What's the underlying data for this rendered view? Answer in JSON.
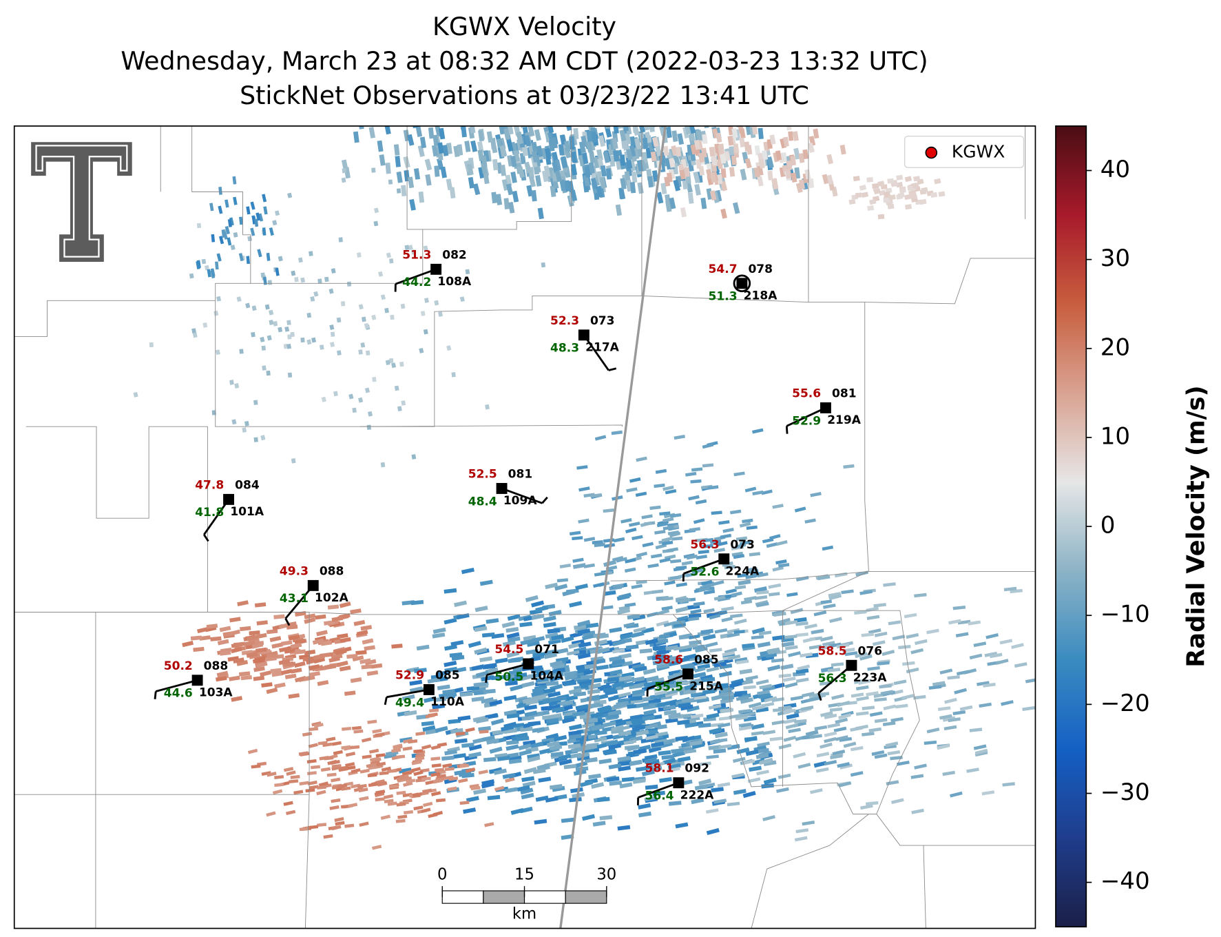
{
  "chart_data": {
    "type": "radar-map",
    "title": [
      "KGWX Velocity",
      "Wednesday, March 23 at 08:32 AM CDT (2022-03-23 13:32 UTC)",
      "StickNet Observations at 03/23/22 13:41 UTC"
    ],
    "legend": {
      "label": "KGWX",
      "color": "#e00000",
      "corner": "upper right"
    },
    "stations": [
      {
        "id": "108A",
        "temperature": "51.3",
        "dewpoint": "44.2",
        "code": "082"
      },
      {
        "id": "217A",
        "temperature": "52.3",
        "dewpoint": "48.3",
        "code": "073"
      },
      {
        "id": "218A",
        "temperature": "54.7",
        "dewpoint": "51.3",
        "code": "078"
      },
      {
        "id": "219A",
        "temperature": "55.6",
        "dewpoint": "52.9",
        "code": "081"
      },
      {
        "id": "101A",
        "temperature": "47.8",
        "dewpoint": "41.8",
        "code": "084"
      },
      {
        "id": "109A",
        "temperature": "52.5",
        "dewpoint": "48.4",
        "code": "081"
      },
      {
        "id": "224A",
        "temperature": "56.3",
        "dewpoint": "52.6",
        "code": "073"
      },
      {
        "id": "102A",
        "temperature": "49.3",
        "dewpoint": "43.1",
        "code": "088"
      },
      {
        "id": "103A",
        "temperature": "50.2",
        "dewpoint": "44.6",
        "code": "088"
      },
      {
        "id": "110A",
        "temperature": "52.9",
        "dewpoint": "49.4",
        "code": "085"
      },
      {
        "id": "104A",
        "temperature": "54.5",
        "dewpoint": "50.5",
        "code": "071"
      },
      {
        "id": "215A",
        "temperature": "58.6",
        "dewpoint": "55.5",
        "code": "085"
      },
      {
        "id": "223A",
        "temperature": "58.5",
        "dewpoint": "56.3",
        "code": "076"
      },
      {
        "id": "222A",
        "temperature": "58.1",
        "dewpoint": "56.4",
        "code": "092"
      }
    ],
    "temperature_color": "#b00000",
    "dewpoint_color": "#006400",
    "scalebar": {
      "label": "km",
      "ticks": [
        0,
        15,
        30
      ]
    },
    "colorbar": {
      "label": "Radial Velocity (m/s)",
      "lim": [
        -45,
        45
      ],
      "ticks": [
        {
          "value": -40,
          "label": "−40"
        },
        {
          "value": -30,
          "label": "−30"
        },
        {
          "value": -20,
          "label": "−20"
        },
        {
          "value": -10,
          "label": "−10"
        },
        0,
        10,
        20,
        30,
        40
      ],
      "colormap": [
        "#1b1f48",
        "#1f3d8c",
        "#1460c4",
        "#3a8bc0",
        "#8cb3c6",
        "#e6e6e6",
        "#d9a392",
        "#c85e3e",
        "#a81a2b",
        "#4a0d14"
      ]
    }
  }
}
